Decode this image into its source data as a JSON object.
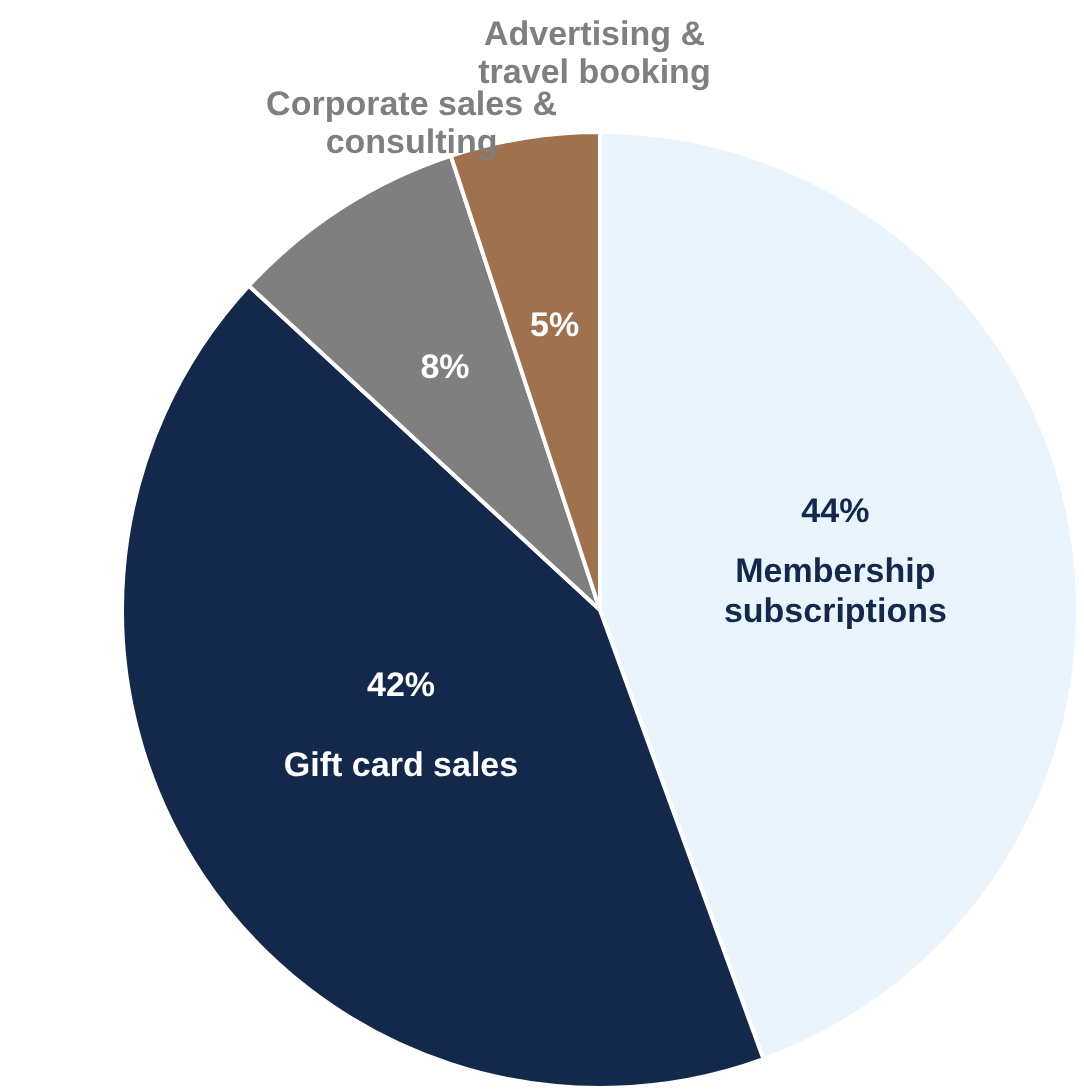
{
  "chart_data": {
    "type": "pie",
    "categories": [
      "Membership subscriptions",
      "Gift card sales",
      "Corporate sales & consulting",
      "Advertising & travel booking"
    ],
    "values": [
      44,
      42,
      8,
      5
    ],
    "colors": [
      "#e9f4fd",
      "#14284b",
      "#7f7f7f",
      "#a0714f"
    ],
    "value_labels": [
      "44%",
      "42%",
      "8%",
      "5%"
    ],
    "legend": false
  }
}
